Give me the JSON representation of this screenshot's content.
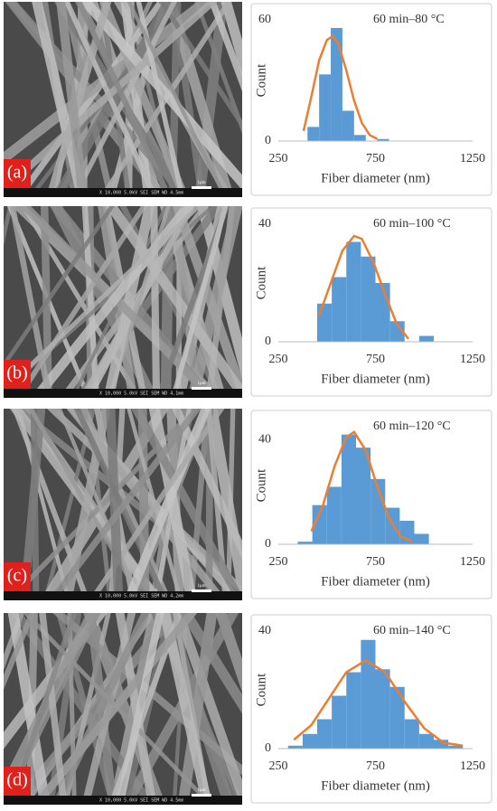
{
  "chart_data": [
    {
      "type": "histogram",
      "panel_label": "(a)",
      "sem_caption": "X 10,000   5.0kV  SEI   SEM   WD 4.5mm",
      "scale_bar": "1μm",
      "annotation": "60 min–80 °C",
      "xlabel": "Fiber diameter (nm)",
      "ylabel": "Count",
      "bins": [
        400,
        460,
        520,
        580,
        640,
        700,
        760,
        820
      ],
      "counts": [
        7,
        33,
        56,
        15,
        3,
        0,
        1
      ],
      "color": "#5b9bd5",
      "fit": {
        "color": "#ed7d31",
        "x": [
          380,
          420,
          460,
          500,
          530,
          560,
          600,
          640,
          680,
          720,
          760
        ],
        "values": [
          5,
          22,
          40,
          50,
          52,
          48,
          35,
          20,
          9,
          3,
          1
        ]
      },
      "xlim": [
        250,
        1250
      ],
      "xticks": [
        250,
        750,
        1250
      ],
      "ylim": [
        0,
        60
      ],
      "yticks": [
        0,
        60
      ]
    },
    {
      "type": "histogram",
      "panel_label": "(b)",
      "sem_caption": "X 10,000   5.0kV  SEI   SEM   WD 4.1mm",
      "scale_bar": "1μm",
      "annotation": "60 min–100 °C",
      "xlabel": "Fiber diameter (nm)",
      "ylabel": "Count",
      "bins": [
        450,
        525,
        600,
        675,
        750,
        825,
        900,
        975,
        1050
      ],
      "counts": [
        13,
        22,
        34,
        29,
        20,
        7,
        0,
        2
      ],
      "color": "#5b9bd5",
      "fit": {
        "color": "#ed7d31",
        "x": [
          460,
          520,
          580,
          640,
          680,
          740,
          800,
          860,
          920
        ],
        "values": [
          9,
          20,
          31,
          36,
          35,
          27,
          16,
          6,
          1
        ]
      },
      "xlim": [
        250,
        1250
      ],
      "xticks": [
        250,
        750,
        1250
      ],
      "ylim": [
        0,
        40
      ],
      "yticks": [
        0,
        40
      ]
    },
    {
      "type": "histogram",
      "panel_label": "(c)",
      "sem_caption": "X 10,000   5.0kV  SEI   SEM   WD 4.2mm",
      "scale_bar": "1μm",
      "annotation": "60 min–120 °C",
      "xlabel": "Fiber diameter (nm)",
      "ylabel": "Count",
      "bins": [
        350,
        425,
        500,
        575,
        650,
        725,
        800,
        875,
        950,
        1025
      ],
      "counts": [
        1,
        15,
        22,
        42,
        37,
        25,
        14,
        9,
        4
      ],
      "color": "#5b9bd5",
      "fit": {
        "color": "#ed7d31",
        "x": [
          420,
          480,
          540,
          600,
          640,
          700,
          760,
          820,
          880,
          940
        ],
        "values": [
          5,
          15,
          30,
          41,
          43,
          36,
          22,
          10,
          3,
          1
        ]
      },
      "xlim": [
        250,
        1250
      ],
      "xticks": [
        250,
        750,
        1250
      ],
      "ylim": [
        0,
        45
      ],
      "yticks": [
        0,
        40
      ]
    },
    {
      "type": "histogram",
      "panel_label": "(d)",
      "sem_caption": "X 10,000   5.0kV  SEI   SEM   WD 4.5mm",
      "scale_bar": "1μm",
      "annotation": "60 min–140 °C",
      "xlabel": "Fiber diameter (nm)",
      "ylabel": "Count",
      "bins": [
        300,
        375,
        450,
        525,
        600,
        675,
        750,
        825,
        900,
        975,
        1050,
        1125,
        1200
      ],
      "counts": [
        1,
        5,
        10,
        18,
        26,
        37,
        27,
        21,
        10,
        5,
        3,
        1
      ],
      "color": "#5b9bd5",
      "fit": {
        "color": "#ed7d31",
        "x": [
          330,
          420,
          510,
          600,
          700,
          800,
          900,
          1000,
          1100,
          1200
        ],
        "values": [
          3,
          8,
          17,
          26,
          30,
          26,
          16,
          7,
          2,
          1
        ]
      },
      "xlim": [
        250,
        1250
      ],
      "xticks": [
        250,
        750,
        1250
      ],
      "ylim": [
        0,
        40
      ],
      "yticks": [
        0,
        40
      ]
    }
  ]
}
